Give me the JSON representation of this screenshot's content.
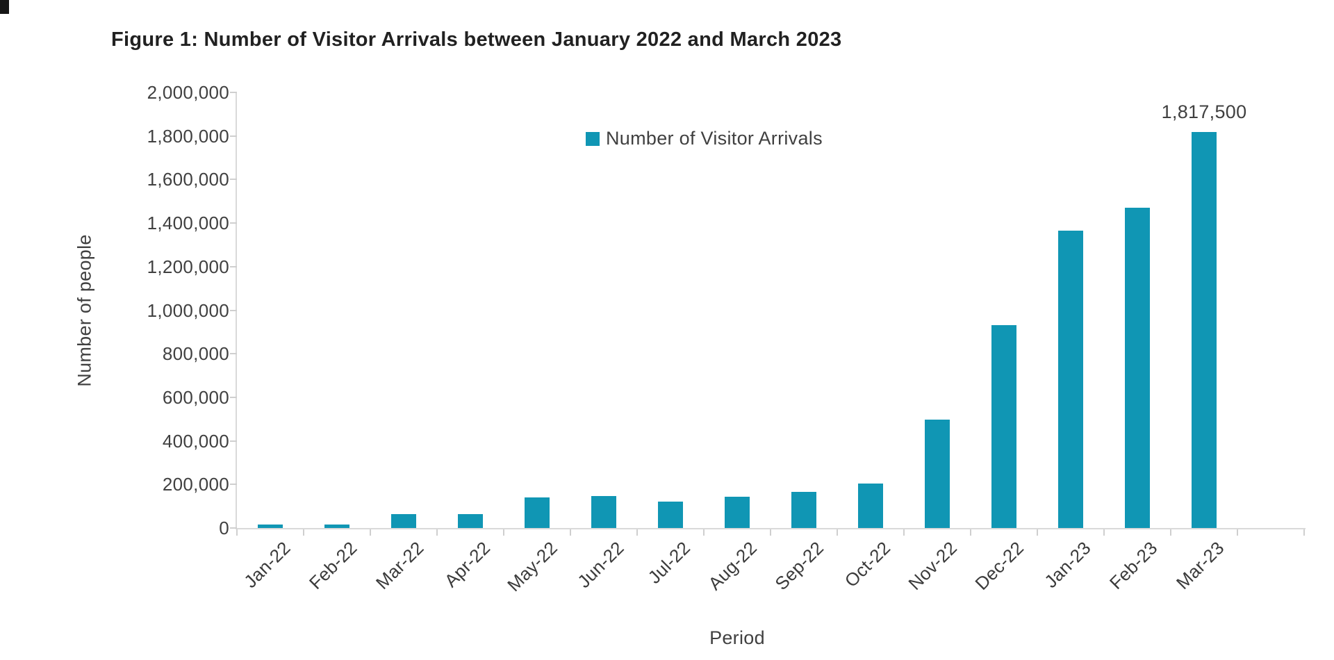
{
  "chart_data": {
    "type": "bar",
    "title": "Figure 1: Number of Visitor Arrivals between January 2022 and March 2023",
    "series_name": "Number of Visitor Arrivals",
    "categories": [
      "Jan-22",
      "Feb-22",
      "Mar-22",
      "Apr-22",
      "May-22",
      "Jun-22",
      "Jul-22",
      "Aug-22",
      "Sep-22",
      "Oct-22",
      "Nov-22",
      "Dec-22",
      "Jan-23",
      "Feb-23",
      "Mar-23"
    ],
    "values": [
      17500,
      15000,
      65000,
      64000,
      139000,
      148000,
      120000,
      143000,
      167000,
      205000,
      497000,
      930000,
      1365000,
      1470000,
      1817500
    ],
    "xlabel": "Period",
    "ylabel": "Number of people",
    "ylim": [
      0,
      2000000
    ],
    "ytick_step": 200000,
    "ytick_labels": [
      "0",
      "200,000",
      "400,000",
      "600,000",
      "800,000",
      "1,000,000",
      "1,200,000",
      "1,400,000",
      "1,600,000",
      "1,800,000",
      "2,000,000"
    ],
    "grid": false,
    "legend_position": "top-center-inside",
    "data_label": {
      "category": "Mar-23",
      "text": "1,817,500"
    },
    "bar_color": "#1096b4",
    "axis_color": "#d9d9d9",
    "text_color": "#404040",
    "title_color": "#212121"
  }
}
